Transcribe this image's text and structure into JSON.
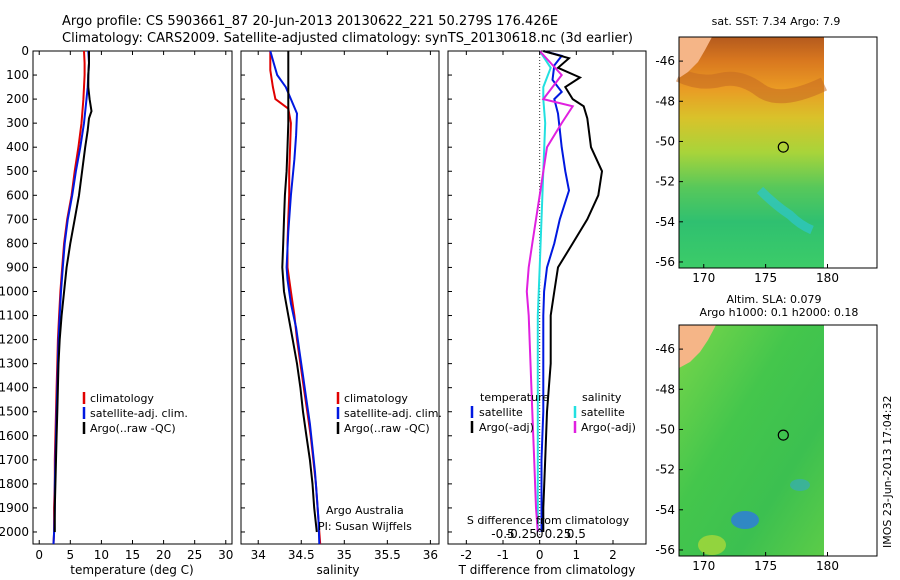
{
  "header": {
    "line1": "Argo profile: CS 5903661_87 20-Jun-2013 20130622_221 50.279S 176.426E",
    "line2": "Climatology: CARS2009. Satellite-adjusted climatology: synTS_20130618.nc (3d earlier)"
  },
  "colors": {
    "climatology": "#e00000",
    "satellite": "#0018e0",
    "argo": "#000000",
    "sat_salinity": "#22e0e0",
    "argo_salinity": "#e020e0",
    "land": "#f5b587"
  },
  "chart_data": [
    {
      "type": "line",
      "name": "temperature",
      "xlabel": "temperature (deg C)",
      "ylabel": "",
      "xlim": [
        -1,
        31
      ],
      "ylim": [
        2050,
        0
      ],
      "xticks": [
        0,
        5,
        10,
        15,
        20,
        25,
        30
      ],
      "yticks": [
        0,
        100,
        200,
        300,
        400,
        500,
        600,
        700,
        800,
        900,
        1000,
        1100,
        1200,
        1300,
        1400,
        1500,
        1600,
        1700,
        1800,
        1900,
        2000
      ],
      "legend": [
        "climatology",
        "satellite-adj. clim.",
        "Argo(..raw -QC)"
      ],
      "series": [
        {
          "name": "climatology",
          "color": "#e00000",
          "points": [
            [
              7.2,
              0
            ],
            [
              7.3,
              50
            ],
            [
              7.3,
              100
            ],
            [
              7.2,
              150
            ],
            [
              7.1,
              200
            ],
            [
              6.8,
              300
            ],
            [
              6.3,
              400
            ],
            [
              5.7,
              500
            ],
            [
              5.2,
              600
            ],
            [
              4.5,
              700
            ],
            [
              4.0,
              800
            ],
            [
              3.7,
              900
            ],
            [
              3.4,
              1000
            ],
            [
              3.2,
              1100
            ],
            [
              3.0,
              1200
            ],
            [
              2.9,
              1300
            ],
            [
              2.8,
              1400
            ],
            [
              2.7,
              1500
            ],
            [
              2.6,
              1600
            ],
            [
              2.5,
              1700
            ],
            [
              2.5,
              1800
            ],
            [
              2.4,
              1900
            ],
            [
              2.4,
              2000
            ],
            [
              2.3,
              2050
            ]
          ]
        },
        {
          "name": "satellite-adj. clim.",
          "color": "#0018e0",
          "points": [
            [
              7.9,
              0
            ],
            [
              8.0,
              50
            ],
            [
              7.9,
              100
            ],
            [
              7.8,
              150
            ],
            [
              7.6,
              200
            ],
            [
              7.2,
              300
            ],
            [
              6.6,
              400
            ],
            [
              5.9,
              500
            ],
            [
              5.3,
              600
            ],
            [
              4.6,
              700
            ],
            [
              4.1,
              800
            ],
            [
              3.8,
              900
            ],
            [
              3.5,
              1000
            ],
            [
              3.3,
              1100
            ],
            [
              3.1,
              1200
            ],
            [
              3.0,
              1300
            ],
            [
              2.9,
              1400
            ],
            [
              2.8,
              1500
            ],
            [
              2.7,
              1600
            ],
            [
              2.6,
              1700
            ],
            [
              2.5,
              1800
            ],
            [
              2.5,
              1900
            ],
            [
              2.4,
              2000
            ],
            [
              2.3,
              2050
            ]
          ]
        },
        {
          "name": "Argo(..raw -QC)",
          "color": "#000000",
          "points": [
            [
              8.0,
              0
            ],
            [
              8.0,
              50
            ],
            [
              7.9,
              100
            ],
            [
              7.9,
              150
            ],
            [
              8.1,
              200
            ],
            [
              8.4,
              250
            ],
            [
              8.0,
              280
            ],
            [
              7.8,
              330
            ],
            [
              7.4,
              400
            ],
            [
              6.9,
              500
            ],
            [
              6.4,
              600
            ],
            [
              5.7,
              700
            ],
            [
              5.0,
              800
            ],
            [
              4.4,
              900
            ],
            [
              4.0,
              1000
            ],
            [
              3.6,
              1100
            ],
            [
              3.3,
              1200
            ],
            [
              3.1,
              1300
            ],
            [
              3.0,
              1400
            ],
            [
              2.9,
              1500
            ],
            [
              2.8,
              1600
            ],
            [
              2.7,
              1700
            ],
            [
              2.6,
              1800
            ],
            [
              2.5,
              1900
            ],
            [
              2.5,
              2000
            ]
          ]
        }
      ]
    },
    {
      "type": "line",
      "name": "salinity",
      "xlabel": "salinity",
      "ylabel": "",
      "xlim": [
        33.8,
        36.1
      ],
      "ylim": [
        2050,
        0
      ],
      "xticks": [
        34,
        34.5,
        35,
        35.5,
        36
      ],
      "legend": [
        "climatology",
        "satellite-adj. clim.",
        "Argo(..raw -QC)"
      ],
      "annotation": [
        "Argo Australia",
        "PI: Susan Wijffels"
      ],
      "series": [
        {
          "name": "climatology",
          "color": "#e00000",
          "points": [
            [
              34.14,
              0
            ],
            [
              34.14,
              80
            ],
            [
              34.17,
              150
            ],
            [
              34.2,
              200
            ],
            [
              34.35,
              240
            ],
            [
              34.38,
              300
            ],
            [
              34.37,
              400
            ],
            [
              34.36,
              500
            ],
            [
              34.36,
              600
            ],
            [
              34.35,
              700
            ],
            [
              34.34,
              800
            ],
            [
              34.34,
              900
            ],
            [
              34.38,
              1000
            ],
            [
              34.42,
              1100
            ],
            [
              34.45,
              1200
            ],
            [
              34.49,
              1300
            ],
            [
              34.53,
              1400
            ],
            [
              34.57,
              1500
            ],
            [
              34.61,
              1600
            ],
            [
              34.64,
              1700
            ],
            [
              34.67,
              1800
            ],
            [
              34.69,
              1900
            ],
            [
              34.71,
              2000
            ],
            [
              34.72,
              2050
            ]
          ]
        },
        {
          "name": "satellite-adj. clim.",
          "color": "#0018e0",
          "points": [
            [
              34.14,
              0
            ],
            [
              34.18,
              50
            ],
            [
              34.22,
              100
            ],
            [
              34.32,
              150
            ],
            [
              34.38,
              200
            ],
            [
              34.45,
              260
            ],
            [
              34.44,
              350
            ],
            [
              34.42,
              450
            ],
            [
              34.38,
              600
            ],
            [
              34.35,
              750
            ],
            [
              34.33,
              900
            ],
            [
              34.34,
              950
            ],
            [
              34.38,
              1050
            ],
            [
              34.44,
              1150
            ],
            [
              34.48,
              1250
            ],
            [
              34.52,
              1350
            ],
            [
              34.56,
              1450
            ],
            [
              34.6,
              1550
            ],
            [
              34.63,
              1650
            ],
            [
              34.66,
              1750
            ],
            [
              34.68,
              1850
            ],
            [
              34.7,
              1950
            ],
            [
              34.71,
              2050
            ]
          ]
        },
        {
          "name": "Argo(..raw -QC)",
          "color": "#000000",
          "points": [
            [
              34.35,
              0
            ],
            [
              34.35,
              100
            ],
            [
              34.35,
              200
            ],
            [
              34.35,
              300
            ],
            [
              34.34,
              400
            ],
            [
              34.33,
              500
            ],
            [
              34.31,
              600
            ],
            [
              34.3,
              700
            ],
            [
              34.29,
              800
            ],
            [
              34.28,
              900
            ],
            [
              34.3,
              1000
            ],
            [
              34.35,
              1100
            ],
            [
              34.4,
              1200
            ],
            [
              34.45,
              1300
            ],
            [
              34.49,
              1400
            ],
            [
              34.52,
              1500
            ],
            [
              34.56,
              1600
            ],
            [
              34.6,
              1700
            ],
            [
              34.63,
              1800
            ],
            [
              34.65,
              1900
            ],
            [
              34.68,
              2000
            ]
          ]
        }
      ]
    },
    {
      "type": "line",
      "name": "difference",
      "xlabel": "T difference from climatology",
      "top_xlabel": "S difference from climatology",
      "xlim": [
        -2.5,
        2.9
      ],
      "ylim": [
        2050,
        0
      ],
      "xticks_bottom": [
        -2,
        -1,
        0,
        1,
        2
      ],
      "xticks_top": [
        -0.5,
        -0.25,
        0,
        0.25,
        0.5
      ],
      "top_tick_labels": [
        "-0.5",
        "-0.25",
        "0",
        "0.25",
        "0.5"
      ],
      "legend_temperature": {
        "title": "temperature",
        "items": [
          "satellite",
          "Argo(-adj)"
        ]
      },
      "legend_salinity": {
        "title": "salinity",
        "items": [
          "satellite",
          "Argo(-adj)"
        ]
      },
      "series": [
        {
          "name": "temperature satellite",
          "color": "#0018e0",
          "points": [
            [
              0.1,
              0
            ],
            [
              0.6,
              20
            ],
            [
              0.4,
              60
            ],
            [
              0.35,
              120
            ],
            [
              0.6,
              170
            ],
            [
              0.4,
              200
            ],
            [
              0.5,
              260
            ],
            [
              0.6,
              400
            ],
            [
              0.7,
              500
            ],
            [
              0.8,
              580
            ],
            [
              0.55,
              700
            ],
            [
              0.4,
              800
            ],
            [
              0.2,
              900
            ],
            [
              0.12,
              1000
            ],
            [
              0.1,
              1100
            ],
            [
              0.1,
              1300
            ],
            [
              0.1,
              1500
            ],
            [
              0.05,
              1700
            ],
            [
              0.05,
              1900
            ],
            [
              0.05,
              2000
            ]
          ]
        },
        {
          "name": "temperature Argo(-adj)",
          "color": "#000000",
          "points": [
            [
              0.1,
              0
            ],
            [
              0.8,
              30
            ],
            [
              0.5,
              70
            ],
            [
              1.1,
              110
            ],
            [
              0.7,
              150
            ],
            [
              0.9,
              200
            ],
            [
              1.2,
              230
            ],
            [
              1.3,
              280
            ],
            [
              1.4,
              400
            ],
            [
              1.7,
              500
            ],
            [
              1.6,
              600
            ],
            [
              1.3,
              700
            ],
            [
              0.9,
              800
            ],
            [
              0.5,
              900
            ],
            [
              0.4,
              1000
            ],
            [
              0.3,
              1100
            ],
            [
              0.3,
              1300
            ],
            [
              0.2,
              1500
            ],
            [
              0.15,
              1700
            ],
            [
              0.1,
              1900
            ],
            [
              0.1,
              2000
            ]
          ]
        },
        {
          "name": "salinity satellite",
          "color": "#22e0e0",
          "points": [
            [
              0.0,
              0
            ],
            [
              0.3,
              70
            ],
            [
              0.1,
              150
            ],
            [
              0.1,
              200
            ],
            [
              0.15,
              300
            ],
            [
              0.1,
              500
            ],
            [
              0.05,
              700
            ],
            [
              0.0,
              900
            ],
            [
              -0.05,
              1100
            ],
            [
              -0.05,
              1300
            ],
            [
              -0.05,
              1500
            ],
            [
              -0.05,
              1700
            ],
            [
              -0.05,
              1900
            ],
            [
              -0.05,
              2000
            ]
          ]
        },
        {
          "name": "salinity Argo(-adj)",
          "color": "#e020e0",
          "points": [
            [
              0.0,
              0
            ],
            [
              0.6,
              100
            ],
            [
              0.1,
              200
            ],
            [
              0.9,
              230
            ],
            [
              0.6,
              300
            ],
            [
              0.2,
              400
            ],
            [
              0.0,
              600
            ],
            [
              -0.2,
              800
            ],
            [
              -0.3,
              900
            ],
            [
              -0.35,
              1000
            ],
            [
              -0.3,
              1100
            ],
            [
              -0.25,
              1300
            ],
            [
              -0.2,
              1500
            ],
            [
              -0.15,
              1700
            ],
            [
              -0.1,
              1900
            ],
            [
              -0.05,
              2000
            ]
          ]
        }
      ]
    },
    {
      "type": "heatmap",
      "name": "sst-map",
      "title": "sat. SST: 7.34  Argo: 7.9",
      "xlim": [
        168,
        184
      ],
      "ylim": [
        -56.3,
        -44.8
      ],
      "xticks": [
        170,
        175,
        180
      ],
      "yticks": [
        -46,
        -48,
        -50,
        -52,
        -54,
        -56
      ],
      "float_position": [
        176.426,
        -50.279
      ]
    },
    {
      "type": "heatmap",
      "name": "sla-map",
      "title_line1": "Altim. SLA: 0.079",
      "title_line2": "Argo h1000: 0.1  h2000: 0.18",
      "xlim": [
        168,
        184
      ],
      "ylim": [
        -56.3,
        -44.8
      ],
      "xticks": [
        170,
        175,
        180
      ],
      "yticks": [
        -46,
        -48,
        -50,
        -52,
        -54,
        -56
      ],
      "float_position": [
        176.426,
        -50.279
      ]
    }
  ],
  "footer": {
    "timestamp": "IMOS 23-Jun-2013 17:04:32"
  }
}
